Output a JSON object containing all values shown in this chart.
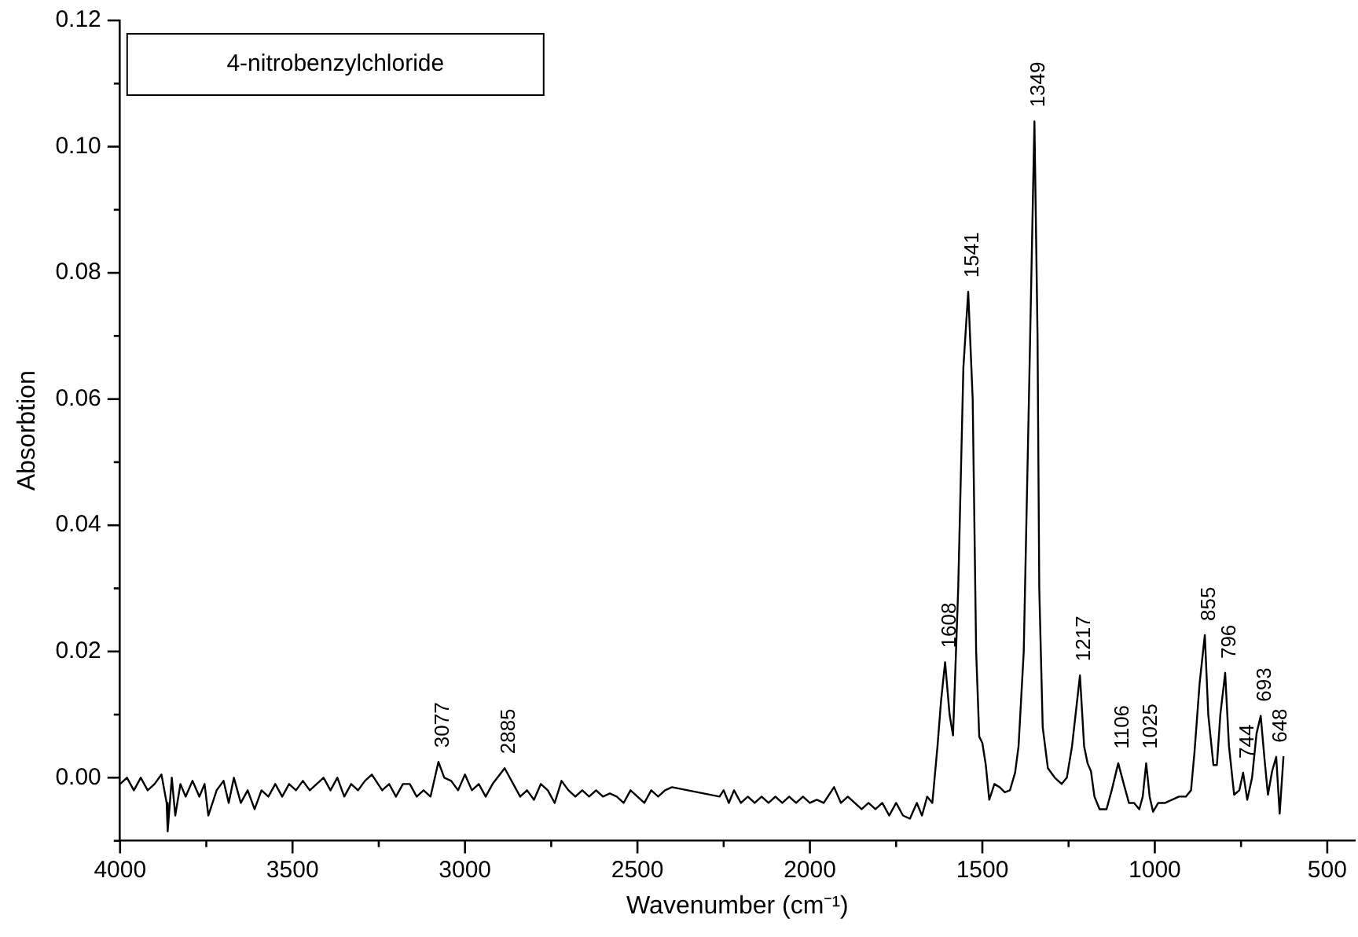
{
  "chart_data": {
    "type": "line",
    "title": "4-nitrobenzylchloride",
    "xlabel": "Wavenumber (cm⁻¹)",
    "ylabel": "Absorbtion",
    "x": [
      4000,
      3980,
      3960,
      3940,
      3920,
      3900,
      3880,
      3865,
      3862,
      3850,
      3840,
      3825,
      3810,
      3790,
      3770,
      3755,
      3744,
      3720,
      3700,
      3685,
      3670,
      3650,
      3630,
      3610,
      3590,
      3570,
      3550,
      3530,
      3510,
      3490,
      3470,
      3450,
      3430,
      3410,
      3390,
      3370,
      3350,
      3330,
      3310,
      3290,
      3270,
      3240,
      3220,
      3200,
      3180,
      3160,
      3140,
      3120,
      3100,
      3077,
      3060,
      3040,
      3020,
      3000,
      2980,
      2960,
      2940,
      2920,
      2885,
      2860,
      2840,
      2820,
      2800,
      2780,
      2760,
      2740,
      2720,
      2700,
      2680,
      2660,
      2640,
      2620,
      2600,
      2580,
      2560,
      2540,
      2520,
      2500,
      2480,
      2460,
      2440,
      2420,
      2400,
      2262,
      2250,
      2235,
      2220,
      2200,
      2180,
      2160,
      2140,
      2120,
      2100,
      2080,
      2060,
      2040,
      2020,
      2000,
      1980,
      1960,
      1930,
      1910,
      1890,
      1870,
      1850,
      1830,
      1810,
      1790,
      1770,
      1750,
      1730,
      1710,
      1690,
      1675,
      1660,
      1645,
      1630,
      1620,
      1608,
      1595,
      1585,
      1570,
      1555,
      1541,
      1528,
      1518,
      1509,
      1500,
      1490,
      1480,
      1465,
      1450,
      1435,
      1420,
      1405,
      1395,
      1380,
      1365,
      1349,
      1340,
      1335,
      1325,
      1310,
      1290,
      1270,
      1255,
      1240,
      1217,
      1205,
      1195,
      1185,
      1175,
      1160,
      1140,
      1125,
      1106,
      1090,
      1075,
      1060,
      1045,
      1035,
      1025,
      1015,
      1005,
      990,
      970,
      950,
      930,
      910,
      895,
      885,
      870,
      855,
      845,
      830,
      820,
      810,
      796,
      785,
      770,
      755,
      744,
      732,
      718,
      705,
      693,
      682,
      672,
      660,
      648,
      638,
      627
    ],
    "values": [
      -0.001,
      0.0,
      -0.002,
      0.0,
      -0.002,
      -0.001,
      0.0005,
      -0.004,
      -0.0085,
      0.0,
      -0.006,
      -0.001,
      -0.003,
      -0.0005,
      -0.003,
      -0.001,
      -0.006,
      -0.002,
      -0.0005,
      -0.004,
      0.0,
      -0.004,
      -0.002,
      -0.005,
      -0.002,
      -0.003,
      -0.001,
      -0.003,
      -0.001,
      -0.002,
      -0.0005,
      -0.002,
      -0.001,
      0.0,
      -0.002,
      0.0,
      -0.003,
      -0.001,
      -0.002,
      -0.0005,
      0.0005,
      -0.002,
      -0.001,
      -0.003,
      -0.001,
      -0.001,
      -0.003,
      -0.002,
      -0.003,
      0.0025,
      0.0,
      -0.0005,
      -0.002,
      0.0005,
      -0.002,
      -0.001,
      -0.003,
      -0.001,
      0.0015,
      -0.001,
      -0.003,
      -0.002,
      -0.0035,
      -0.001,
      -0.002,
      -0.004,
      -0.0005,
      -0.002,
      -0.003,
      -0.002,
      -0.003,
      -0.002,
      -0.003,
      -0.0025,
      -0.003,
      -0.004,
      -0.002,
      -0.003,
      -0.004,
      -0.002,
      -0.003,
      -0.002,
      -0.0015,
      -0.003,
      -0.002,
      -0.004,
      -0.002,
      -0.004,
      -0.003,
      -0.004,
      -0.003,
      -0.004,
      -0.003,
      -0.004,
      -0.003,
      -0.004,
      -0.003,
      -0.004,
      -0.0035,
      -0.004,
      -0.0015,
      -0.004,
      -0.003,
      -0.004,
      -0.005,
      -0.004,
      -0.005,
      -0.004,
      -0.006,
      -0.004,
      -0.006,
      -0.0065,
      -0.004,
      -0.006,
      -0.003,
      -0.004,
      0.005,
      0.012,
      0.0183,
      0.01,
      0.0067,
      0.03,
      0.065,
      0.077,
      0.06,
      0.02,
      0.0065,
      0.0055,
      0.002,
      -0.0035,
      -0.001,
      -0.0015,
      -0.0023,
      -0.002,
      0.0008,
      0.005,
      0.02,
      0.06,
      0.104,
      0.07,
      0.03,
      0.008,
      0.0015,
      0.0,
      -0.001,
      0.0,
      0.005,
      0.0162,
      0.005,
      0.0023,
      0.001,
      -0.003,
      -0.005,
      -0.005,
      -0.002,
      0.0023,
      -0.001,
      -0.004,
      -0.004,
      -0.005,
      -0.003,
      0.0023,
      -0.003,
      -0.0054,
      -0.004,
      -0.004,
      -0.0035,
      -0.003,
      -0.003,
      -0.002,
      0.004,
      0.015,
      0.0226,
      0.01,
      0.002,
      0.002,
      0.01,
      0.0166,
      0.005,
      -0.0027,
      -0.002,
      0.0008,
      -0.0035,
      0.0,
      0.007,
      0.0098,
      0.003,
      -0.0027,
      0.001,
      0.0033,
      -0.0057,
      0.0033
    ],
    "color": "#000000",
    "marker": "none",
    "line_style": "solid",
    "xlim": [
      4000,
      420
    ],
    "xticks": [
      4000,
      {
        "value": 3750,
        "label": null
      },
      3500,
      {
        "value": 3250,
        "label": null
      },
      3000,
      {
        "value": 2750,
        "label": null
      },
      2500,
      {
        "value": 2250,
        "label": null
      },
      2000,
      {
        "value": 1750,
        "label": null
      },
      1500,
      {
        "value": 1250,
        "label": null
      },
      1000,
      {
        "value": 750,
        "label": null
      },
      500
    ],
    "ylim": [
      -0.01,
      0.12
    ],
    "yticks": [
      {
        "value": -0.01,
        "label": null
      },
      {
        "value": 0,
        "label": "0.00"
      },
      {
        "value": 0.01,
        "label": null
      },
      {
        "value": 0.02,
        "label": "0.02"
      },
      {
        "value": 0.03,
        "label": null
      },
      {
        "value": 0.04,
        "label": "0.04"
      },
      {
        "value": 0.05,
        "label": null
      },
      {
        "value": 0.06,
        "label": "0.06"
      },
      {
        "value": 0.07,
        "label": null
      },
      {
        "value": 0.08,
        "label": "0.08"
      },
      {
        "value": 0.09,
        "label": null
      },
      {
        "value": 0.1,
        "label": "0.10"
      },
      {
        "value": 0.11,
        "label": null
      },
      {
        "value": 0.12,
        "label": "0.12"
      }
    ],
    "grid": false,
    "legend": false,
    "annotations": [
      {
        "text": "3077",
        "x": 3077,
        "y": 0.0025
      },
      {
        "text": "2885",
        "x": 2885,
        "y": 0.0015
      },
      {
        "text": "1608",
        "x": 1608,
        "y": 0.0183
      },
      {
        "text": "1541",
        "x": 1541,
        "y": 0.077
      },
      {
        "text": "1349",
        "x": 1349,
        "y": 0.104
      },
      {
        "text": "1217",
        "x": 1217,
        "y": 0.0162
      },
      {
        "text": "1106",
        "x": 1106,
        "y": 0.0023
      },
      {
        "text": "1025",
        "x": 1025,
        "y": 0.0023
      },
      {
        "text": "855",
        "x": 855,
        "y": 0.0226
      },
      {
        "text": "796",
        "x": 796,
        "y": 0.0166
      },
      {
        "text": "744",
        "x": 744,
        "y": 0.0008
      },
      {
        "text": "693",
        "x": 693,
        "y": 0.0098
      },
      {
        "text": "648",
        "x": 648,
        "y": 0.0033
      }
    ]
  }
}
